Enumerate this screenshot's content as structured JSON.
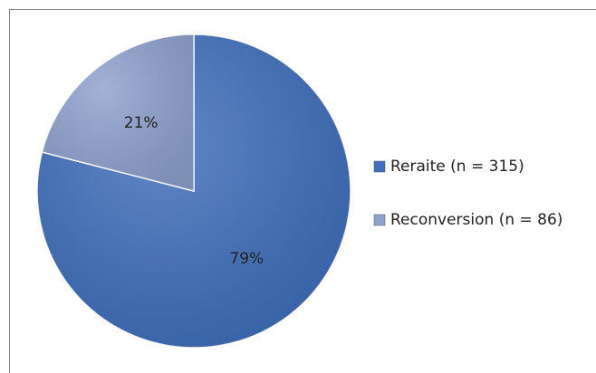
{
  "chart_data": {
    "type": "pie",
    "categories": [
      "Reraite (n = 315)",
      "Reconversion (n = 86)"
    ],
    "values": [
      79,
      21
    ],
    "value_labels": [
      "79%",
      "21%"
    ],
    "colors": [
      "#3f6fbd",
      "#8fa2cf"
    ],
    "legend": "right"
  }
}
